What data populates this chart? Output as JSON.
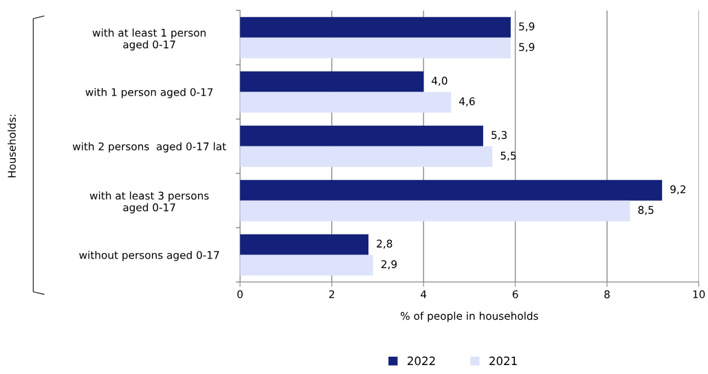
{
  "chart_data": {
    "type": "bar",
    "orientation": "horizontal",
    "xlabel": "% of people in households",
    "annotations": [
      "Households:"
    ],
    "categories": [
      "with at least 1 person\naged 0-17",
      "with 1 person aged 0-17",
      "with 2 persons  aged 0-17 lat",
      "with at least 3 persons\naged 0-17",
      "without persons aged 0-17"
    ],
    "series": [
      {
        "name": "2022",
        "color": "#14217a",
        "values": [
          5.9,
          4.0,
          5.3,
          9.2,
          2.8
        ],
        "value_labels": [
          "5,9",
          "4,0",
          "5,3",
          "9,2",
          "2,8"
        ]
      },
      {
        "name": "2021",
        "color": "#dde3fb",
        "values": [
          5.9,
          4.6,
          5.5,
          8.5,
          2.9
        ],
        "value_labels": [
          "5,9",
          "4,6",
          "5,5",
          "8,5",
          "2,9"
        ]
      }
    ],
    "xlim": [
      0,
      10
    ],
    "xticks": [
      0,
      2,
      4,
      6,
      8,
      10
    ],
    "grid": "x",
    "legend": "bottom"
  }
}
